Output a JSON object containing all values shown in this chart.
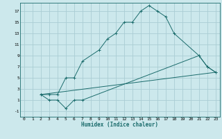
{
  "title": "",
  "xlabel": "Humidex (Indice chaleur)",
  "bg_color": "#cce8ec",
  "grid_color": "#aacdd4",
  "line_color": "#1a6b6b",
  "xlim": [
    -0.5,
    23.5
  ],
  "ylim": [
    -2,
    18.5
  ],
  "xticks": [
    0,
    1,
    2,
    3,
    4,
    5,
    6,
    7,
    8,
    9,
    10,
    11,
    12,
    13,
    14,
    15,
    16,
    17,
    18,
    19,
    20,
    21,
    22,
    23
  ],
  "yticks": [
    -1,
    1,
    3,
    5,
    7,
    9,
    11,
    13,
    15,
    17
  ],
  "line1_x": [
    2,
    3,
    4,
    5,
    6,
    7,
    9,
    10,
    11,
    12,
    13,
    14,
    15,
    16,
    17,
    18,
    21,
    22,
    23
  ],
  "line1_y": [
    2,
    2,
    2,
    5,
    5,
    8,
    10,
    12,
    13,
    15,
    15,
    17,
    18,
    17,
    16,
    13,
    9,
    7,
    6
  ],
  "line2_x": [
    2,
    3,
    4,
    5,
    6,
    7,
    21,
    22,
    23
  ],
  "line2_y": [
    2,
    1,
    1,
    -0.5,
    1,
    1,
    9,
    7,
    6
  ],
  "line3_x": [
    2,
    23
  ],
  "line3_y": [
    2,
    6
  ]
}
